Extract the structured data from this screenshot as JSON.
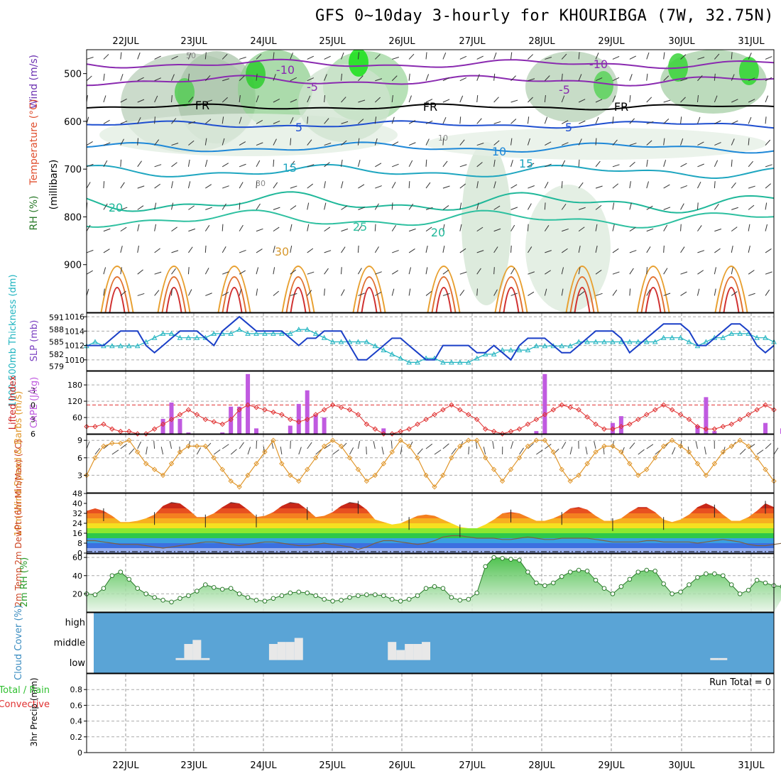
{
  "title": "GFS 0~10day 3-hourly for KHOURIBGA (7W, 32.75N)",
  "dates": [
    "22JUL",
    "23JUL",
    "24JUL",
    "25JUL",
    "26JUL",
    "27JUL",
    "28JUL",
    "29JUL",
    "30JUL",
    "31JUL"
  ],
  "colors": {
    "rh": "#3a9c3a",
    "temp": "#e05030",
    "wind_axis": "#6a2fb0",
    "slp": "#1a3fc7",
    "thick": "#20b4c0",
    "lifted": "#e03030",
    "cape": "#c05ae0",
    "wind10": "#e0962a",
    "precip_total": "#30c030",
    "precip_conv": "#e03030",
    "cloud": "#5aa4d6"
  },
  "chart_data": [
    {
      "panel": "upper-air",
      "type": "contour",
      "ylabel": "(millibars)",
      "side_labels": [
        "Wind (m/s)",
        "Temperature (°C)",
        "RH (%)"
      ],
      "yticks": [
        500,
        600,
        700,
        800,
        900
      ],
      "ylim": [
        1000,
        450
      ],
      "temperature_contour_labels": [
        "-10",
        "-5",
        "FR",
        "5",
        "10",
        "15",
        "20",
        "25",
        "30"
      ],
      "rh_contour_labels": [
        "50",
        "10",
        "30"
      ]
    },
    {
      "panel": "pressure-thickness",
      "type": "line",
      "left_ylabel": "1000-500mb Thickness (dm)",
      "right_ylabel": "SLP (mb)",
      "left_yticks": [
        579,
        582,
        585,
        588,
        591
      ],
      "right_yticks": [
        1010,
        1012,
        1014,
        1016
      ],
      "series": [
        {
          "name": "SLP (mb)",
          "ylim": [
            1008.5,
            1016.5
          ],
          "values": [
            1012,
            1012,
            1012,
            1013,
            1014,
            1014,
            1014,
            1012,
            1011,
            1012,
            1013,
            1014,
            1014,
            1014,
            1013,
            1012,
            1014,
            1015,
            1016,
            1015,
            1014,
            1014,
            1014,
            1014,
            1013,
            1012,
            1013,
            1013,
            1014,
            1014,
            1014,
            1012,
            1010,
            1010,
            1011,
            1012,
            1013,
            1013,
            1012,
            1011,
            1010,
            1010,
            1012,
            1012,
            1012,
            1012,
            1011,
            1011,
            1012,
            1011,
            1010,
            1012,
            1013,
            1013,
            1013,
            1012,
            1011,
            1011,
            1012,
            1013,
            1014,
            1014,
            1014,
            1013,
            1011,
            1012,
            1013,
            1014,
            1015,
            1015,
            1015,
            1014,
            1012,
            1012,
            1013,
            1014,
            1015,
            1015,
            1014,
            1012,
            1011,
            1012
          ]
        },
        {
          "name": "1000-500mb Thickness (dm)",
          "ylim": [
            578,
            592
          ],
          "values": [
            584,
            585,
            584,
            584,
            584,
            584,
            584,
            585,
            586,
            587,
            587,
            586,
            586,
            586,
            586,
            587,
            587,
            587,
            588,
            587,
            587,
            587,
            587,
            587,
            587,
            588,
            588,
            587,
            586,
            585,
            585,
            585,
            585,
            585,
            584,
            583,
            582,
            581,
            580,
            580,
            581,
            581,
            580,
            580,
            580,
            580,
            581,
            582,
            582,
            583,
            583,
            583,
            583,
            584,
            584,
            584,
            584,
            584,
            585,
            585,
            585,
            585,
            585,
            585,
            585,
            585,
            585,
            585,
            586,
            586,
            586,
            585,
            584,
            585,
            586,
            586,
            587,
            587,
            587,
            586,
            586,
            585
          ]
        }
      ]
    },
    {
      "panel": "instability",
      "type": "bar+line",
      "left_ylabel": "Lifted Index",
      "right_ylabel": "CAPE (J/kg)",
      "left_yticks": [
        "-3",
        "0",
        "3",
        "6"
      ],
      "right_yticks": [
        60,
        120,
        180
      ],
      "series": [
        {
          "name": "Lifted Index",
          "ylim": [
            6,
            -7
          ],
          "values": [
            4.5,
            4.5,
            4,
            5,
            5.5,
            5.5,
            6,
            6,
            5,
            4,
            3,
            2,
            1,
            2,
            3,
            3.5,
            4,
            3,
            1,
            0,
            0.5,
            1,
            1.5,
            2,
            3,
            3.5,
            3,
            2,
            1,
            0,
            0.5,
            1,
            2,
            4,
            5,
            6,
            6,
            5.5,
            5,
            4,
            3,
            2,
            1,
            0,
            1,
            2,
            3,
            5,
            5.5,
            6,
            5.5,
            5,
            4,
            3,
            2,
            1,
            0,
            0.5,
            1,
            2.5,
            4,
            5,
            5,
            4.5,
            4,
            3,
            2,
            1,
            0,
            1,
            2,
            3,
            4.5,
            5,
            5,
            4.5,
            4,
            3,
            2,
            1,
            0,
            1
          ]
        },
        {
          "name": "CAPE (J/kg)",
          "ylim": [
            0,
            230
          ],
          "values": [
            0,
            0,
            0,
            0,
            0,
            0,
            0,
            0,
            0,
            55,
            115,
            55,
            5,
            0,
            0,
            0,
            5,
            100,
            100,
            220,
            20,
            0,
            0,
            0,
            30,
            110,
            160,
            70,
            60,
            0,
            0,
            0,
            0,
            0,
            0,
            20,
            0,
            0,
            0,
            0,
            0,
            0,
            0,
            0,
            0,
            0,
            0,
            0,
            0,
            0,
            0,
            0,
            0,
            10,
            220,
            0,
            0,
            0,
            0,
            0,
            0,
            0,
            40,
            65,
            0,
            0,
            0,
            0,
            0,
            0,
            0,
            0,
            30,
            135,
            10,
            0,
            0,
            0,
            0,
            0,
            40,
            0,
            20
          ]
        }
      ]
    },
    {
      "panel": "wind10",
      "type": "line",
      "ylabel": "10m Wind Speed & Barbs (m/s)",
      "yticks": [
        3,
        6,
        9
      ],
      "ylim": [
        0,
        10
      ],
      "values": [
        3,
        6,
        8,
        8.5,
        8.5,
        9,
        7,
        5,
        4,
        3,
        5,
        7,
        8,
        8,
        8,
        6,
        4,
        2,
        1,
        3,
        5,
        7,
        9,
        5,
        3,
        2,
        4,
        6,
        8,
        9,
        8,
        6,
        4,
        2,
        3,
        5,
        7,
        9,
        8,
        6,
        3,
        1,
        3,
        6,
        8,
        9,
        9,
        6,
        4,
        2,
        4,
        6,
        8,
        9,
        9,
        7,
        4,
        2,
        3,
        5,
        7,
        8,
        8,
        7,
        5,
        3,
        4,
        6,
        8,
        9,
        8,
        7,
        5,
        3,
        5,
        7,
        8,
        9,
        8,
        6,
        4,
        2
      ]
    },
    {
      "panel": "temperature",
      "type": "area",
      "ylabel": "2m Temp 2m DewPt (6hr Min/Max) (°C)",
      "yticks": [
        0,
        8,
        16,
        24,
        32,
        40,
        48
      ],
      "ylim": [
        0,
        48
      ],
      "series": [
        {
          "name": "2m Temp",
          "values": [
            34,
            36,
            34,
            30,
            25,
            25,
            26,
            28,
            31,
            38,
            41,
            40,
            35,
            29,
            29,
            32,
            37,
            41,
            40,
            35,
            29,
            30,
            33,
            38,
            41,
            40,
            35,
            29,
            30,
            33,
            38,
            41,
            40,
            35,
            27,
            25,
            23,
            24,
            27,
            30,
            31,
            30,
            27,
            24,
            21,
            20,
            20,
            23,
            27,
            32,
            33,
            32,
            29,
            26,
            26,
            28,
            31,
            36,
            37,
            35,
            30,
            26,
            26,
            28,
            33,
            37,
            37,
            33,
            27,
            25,
            27,
            31,
            37,
            40,
            37,
            31,
            26,
            26,
            29,
            34,
            40,
            37,
            28,
            27
          ]
        },
        {
          "name": "2m DewPt",
          "values": [
            10,
            10,
            9,
            8,
            7,
            7,
            7,
            6,
            5,
            4,
            5,
            6,
            7,
            8,
            9,
            9,
            8,
            7,
            6,
            7,
            8,
            9,
            9,
            8,
            7,
            6,
            6,
            7,
            8,
            7,
            6,
            5,
            3,
            5,
            8,
            10,
            10,
            9,
            8,
            7,
            8,
            10,
            13,
            14,
            14,
            13,
            12,
            12,
            12,
            11,
            11,
            12,
            13,
            12,
            11,
            11,
            12,
            12,
            12,
            12,
            11,
            10,
            9,
            9,
            9,
            9,
            10,
            10,
            9,
            9,
            9,
            9,
            8,
            9,
            10,
            11,
            10,
            9,
            7,
            6,
            6,
            7,
            8,
            8
          ]
        }
      ]
    },
    {
      "panel": "rh2m",
      "type": "area",
      "ylabel": "2m RH (%)",
      "yticks": [
        20,
        40,
        60
      ],
      "ylim": [
        0,
        64
      ],
      "values": [
        20,
        19,
        26,
        40,
        44,
        36,
        26,
        20,
        16,
        13,
        11,
        15,
        18,
        23,
        30,
        27,
        25,
        26,
        20,
        16,
        13,
        12,
        15,
        18,
        21,
        22,
        21,
        18,
        14,
        12,
        13,
        16,
        18,
        19,
        19,
        18,
        14,
        12,
        14,
        18,
        26,
        28,
        26,
        16,
        13,
        14,
        21,
        50,
        60,
        59,
        58,
        57,
        44,
        32,
        29,
        32,
        39,
        44,
        46,
        45,
        35,
        26,
        20,
        28,
        36,
        44,
        46,
        45,
        31,
        20,
        22,
        30,
        38,
        42,
        42,
        40,
        30,
        20,
        24,
        35,
        32,
        29,
        28,
        31
      ]
    },
    {
      "panel": "cloud",
      "type": "bar",
      "ylabel": "Cloud Cover (%)",
      "categories": [
        "high",
        "middle",
        "low"
      ],
      "high": [
        0,
        0,
        0,
        0,
        0,
        0,
        0,
        0,
        0,
        0,
        0,
        0,
        0,
        0,
        0,
        0,
        0,
        0,
        0,
        0,
        0,
        0,
        0,
        0,
        0,
        0,
        0,
        0,
        0,
        0,
        0,
        0,
        0,
        0,
        0,
        0,
        0,
        0,
        0,
        0,
        0,
        0,
        0,
        0,
        0,
        0,
        0,
        0,
        0,
        0,
        0,
        0,
        0,
        0,
        0,
        0,
        0,
        0,
        0,
        0,
        0,
        0,
        0,
        0,
        0,
        0,
        0,
        0,
        0,
        0,
        0,
        0,
        0,
        0,
        0,
        0,
        0,
        0,
        0,
        0,
        0,
        0,
        0,
        0
      ],
      "middle": [
        0,
        0,
        0,
        0,
        0,
        0,
        0,
        0,
        0,
        0,
        0,
        5,
        40,
        50,
        5,
        0,
        0,
        0,
        0,
        0,
        0,
        0,
        40,
        45,
        45,
        55,
        0,
        0,
        0,
        0,
        0,
        0,
        0,
        0,
        0,
        0,
        45,
        25,
        40,
        40,
        45,
        0,
        0,
        0,
        0,
        0,
        0,
        0,
        0,
        0,
        0,
        0,
        0,
        0,
        0,
        0,
        0,
        0,
        0,
        0,
        0,
        0,
        0,
        0,
        0,
        0,
        0,
        0,
        0,
        0,
        0,
        0,
        0,
        0,
        5,
        5,
        0,
        0,
        0,
        0,
        0,
        0,
        0,
        0
      ]
    },
    {
      "panel": "precip",
      "type": "bar",
      "ylabel": "3hr Precip (mm)",
      "legend": [
        "Total / Rain",
        "Convective"
      ],
      "yticks": [
        0,
        0.2,
        0.4,
        0.6,
        0.8
      ],
      "ylim": [
        0,
        1
      ],
      "run_total": "Run Total = 0"
    }
  ],
  "labels": {
    "wind": "Wind (m/s)",
    "temp": "Temperature (°C)",
    "rh": "RH (%)",
    "millibars": "(millibars)",
    "thickness": "1000-500mb Thickness (dm)",
    "slp": "SLP (mb)",
    "lifted": "Lifted Index",
    "cape": "CAPE (J/kg)",
    "wind10": "10m Wind Speed & Barbs (m/s)",
    "temp2m": "2m Temp 2m DewPt (6hr Min/Max) (°C)",
    "rh2m": "2m RH (%)",
    "cloud": "Cloud Cover (%)",
    "precip": "3hr Precip (mm)",
    "precip_total": "Total / Rain",
    "precip_conv": "Convective",
    "run_total": "Run Total = 0"
  }
}
